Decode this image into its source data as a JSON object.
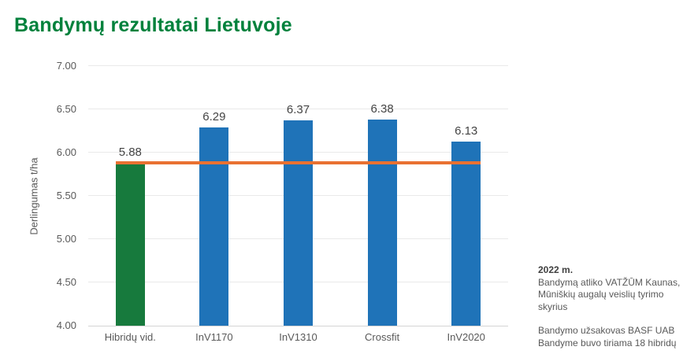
{
  "title": "Bandymų rezultatai Lietuvoje",
  "chart_data": {
    "type": "bar",
    "title": "Bandymų rezultatai Lietuvoje",
    "xlabel": "",
    "ylabel": "Derlingumas t/ha",
    "categories": [
      "Hibridų vid.",
      "InV1170",
      "InV1310",
      "Crossfit",
      "InV2020"
    ],
    "values": [
      5.88,
      6.29,
      6.37,
      6.38,
      6.13
    ],
    "value_labels": [
      "5.88",
      "6.29",
      "6.37",
      "6.38",
      "6.13"
    ],
    "bar_colors": [
      "#177A3D",
      "#1F73B8",
      "#1F73B8",
      "#1F73B8",
      "#1F73B8"
    ],
    "ylim": [
      4.0,
      7.0
    ],
    "yticks": [
      "4.00",
      "4.50",
      "5.00",
      "5.50",
      "6.00",
      "6.50",
      "7.00"
    ],
    "grid": true,
    "legend": false,
    "reference_line": {
      "value": 5.88,
      "color": "#E97132"
    }
  },
  "note": {
    "heading": "2022 m.",
    "line1": "Bandymą atliko VATŽŪM Kaunas,",
    "line2": "Mūniškių augalų veislių tyrimo skyrius",
    "line3": "Bandymo užsakovas BASF UAB",
    "line4": "Bandyme buvo tiriama 18 hibridų"
  },
  "colors": {
    "title_green": "#00813C",
    "bar_green": "#177A3D",
    "bar_blue": "#1F73B8",
    "reference_orange": "#E97132",
    "axis_text_gray": "#595959"
  }
}
